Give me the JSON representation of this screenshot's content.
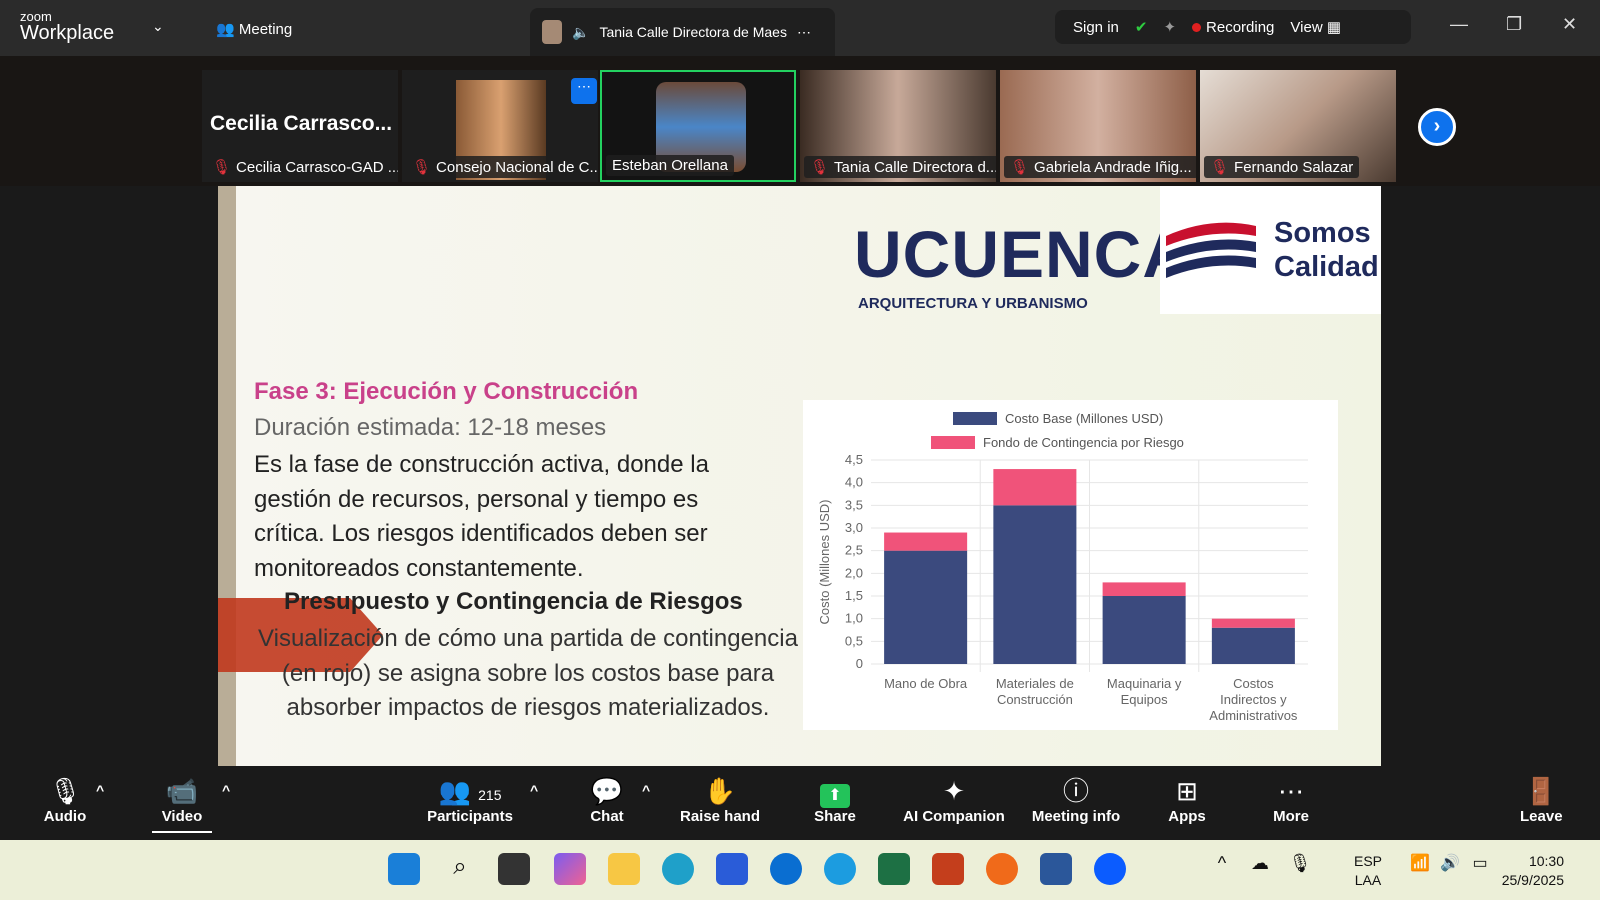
{
  "app": {
    "logo_small": "zoom",
    "logo_big": "Workplace",
    "meeting_label": "Meeting",
    "active_speaker": "Tania Calle Directora de Maes",
    "sign_in": "Sign in",
    "recording": "Recording",
    "view": "View"
  },
  "participants": [
    {
      "name": "Cecilia Carrasco-GAD ...",
      "big": "Cecilia  Carrasco..."
    },
    {
      "name": "Consejo Nacional de C..."
    },
    {
      "name": "Esteban Orellana"
    },
    {
      "name": "Tania Calle Directora d..."
    },
    {
      "name": "Gabriela Andrade Iñig..."
    },
    {
      "name": "Fernando Salazar"
    }
  ],
  "slide": {
    "brand": "UCUENCA",
    "brand_sub": "ARQUITECTURA Y URBANISMO",
    "somos1": "Somos",
    "somos2": "Calidad",
    "title": "Fase 3: Ejecución y Construcción",
    "subtitle": "Duración estimada: 12-18 meses",
    "body": "Es la fase de construcción activa, donde la gestión de recursos, personal y tiempo es crítica. Los riesgos identificados deben ser monitoreados constantemente.",
    "section": "Presupuesto y Contingencia de Riesgos",
    "section_body": "Visualización de cómo una partida de contingencia (en rojo) se asigna sobre los costos base para absorber impactos de riesgos materializados."
  },
  "chart_data": {
    "type": "bar",
    "stacked": true,
    "categories": [
      [
        "Mano de Obra"
      ],
      [
        "Materiales de",
        "Construcción"
      ],
      [
        "Maquinaria y",
        "Equipos"
      ],
      [
        "Costos",
        "Indirectos y",
        "Administrativos"
      ]
    ],
    "series": [
      {
        "name": "Costo Base (Millones USD)",
        "values": [
          2.5,
          3.5,
          1.5,
          0.8
        ],
        "color": "#3b4a7e"
      },
      {
        "name": "Fondo de Contingencia por Riesgo",
        "values": [
          0.4,
          0.8,
          0.3,
          0.2
        ],
        "color": "#f0537a"
      }
    ],
    "ylabel": "Costo (Millones USD)",
    "ylim": [
      0,
      4.5
    ],
    "yticks": [
      "0",
      "0,5",
      "1,0",
      "1,5",
      "2,0",
      "2,5",
      "3,0",
      "3,5",
      "4,0",
      "4,5"
    ],
    "grid": true,
    "legend": "top"
  },
  "toolbar": {
    "audio": "Audio",
    "video": "Video",
    "participants": "Participants",
    "participant_count": "215",
    "chat": "Chat",
    "raise_hand": "Raise hand",
    "share": "Share",
    "ai": "AI Companion",
    "info": "Meeting info",
    "apps": "Apps",
    "more": "More",
    "leave": "Leave"
  },
  "taskbar": {
    "lang1": "ESP",
    "lang2": "LAA",
    "time": "10:30",
    "date": "25/9/2025"
  }
}
